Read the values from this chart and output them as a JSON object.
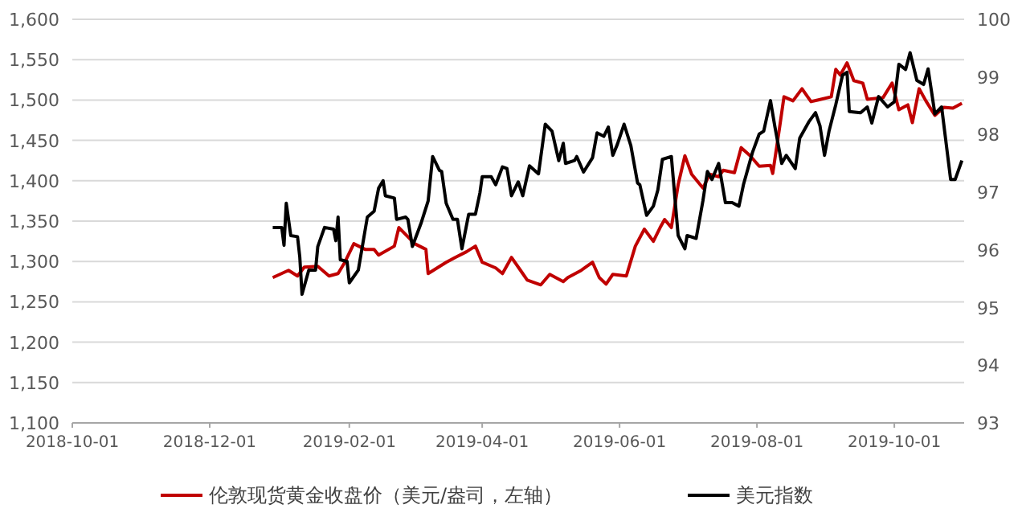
{
  "chart_data": {
    "type": "line",
    "xlim": [
      "2018-10-01",
      "2019-11-01"
    ],
    "xticks": [
      "2018-10-01",
      "2018-12-01",
      "2019-02-01",
      "2019-04-01",
      "2019-06-01",
      "2019-08-01",
      "2019-10-01"
    ],
    "ylim": [
      1100,
      1600
    ],
    "yticks": [
      {
        "value": 1100,
        "label": "1,100"
      },
      {
        "value": 1150,
        "label": "1,150"
      },
      {
        "value": 1200,
        "label": "1,200"
      },
      {
        "value": 1250,
        "label": "1,250"
      },
      {
        "value": 1300,
        "label": "1,300"
      },
      {
        "value": 1350,
        "label": "1,350"
      },
      {
        "value": 1400,
        "label": "1,400"
      },
      {
        "value": 1450,
        "label": "1,450"
      },
      {
        "value": 1500,
        "label": "1,500"
      },
      {
        "value": 1550,
        "label": "1,550"
      },
      {
        "value": 1600,
        "label": "1,600"
      }
    ],
    "y2lim": [
      93,
      100
    ],
    "y2ticks": [
      93,
      94,
      95,
      96,
      97,
      98,
      99,
      100
    ],
    "grid": "y",
    "legend": "bottom",
    "series": [
      {
        "name": "伦敦现货黄金收盘价（美元/盎司，左轴）",
        "color": "#c00000",
        "x": [
          "2018-12-29",
          "2019-01-05",
          "2019-01-09",
          "2019-01-12",
          "2019-01-18",
          "2019-01-23",
          "2019-01-27",
          "2019-01-30",
          "2019-02-03",
          "2019-02-08",
          "2019-02-12",
          "2019-02-14",
          "2019-02-21",
          "2019-02-23",
          "2019-03-02",
          "2019-03-07",
          "2019-03-08",
          "2019-03-16",
          "2019-03-20",
          "2019-03-25",
          "2019-03-29",
          "2019-04-01",
          "2019-04-07",
          "2019-04-10",
          "2019-04-14",
          "2019-04-19",
          "2019-04-21",
          "2019-04-27",
          "2019-05-01",
          "2019-05-07",
          "2019-05-09",
          "2019-05-15",
          "2019-05-20",
          "2019-05-23",
          "2019-05-26",
          "2019-05-29",
          "2019-06-04",
          "2019-06-08",
          "2019-06-12",
          "2019-06-16",
          "2019-06-19",
          "2019-06-21",
          "2019-06-24",
          "2019-06-27",
          "2019-06-30",
          "2019-07-03",
          "2019-07-08",
          "2019-07-11",
          "2019-07-15",
          "2019-07-17",
          "2019-07-22",
          "2019-07-25",
          "2019-07-29",
          "2019-08-02",
          "2019-08-07",
          "2019-08-08",
          "2019-08-11",
          "2019-08-13",
          "2019-08-17",
          "2019-08-21",
          "2019-08-25",
          "2019-09-03",
          "2019-09-05",
          "2019-09-07",
          "2019-09-10",
          "2019-09-13",
          "2019-09-17",
          "2019-09-19",
          "2019-09-26",
          "2019-09-30",
          "2019-10-03",
          "2019-10-07",
          "2019-10-09",
          "2019-10-12",
          "2019-10-15",
          "2019-10-19",
          "2019-10-23",
          "2019-10-27",
          "2019-10-31"
        ],
        "values": [
          1280,
          1289,
          1282,
          1293,
          1294,
          1282,
          1285,
          1299,
          1322,
          1315,
          1315,
          1308,
          1319,
          1342,
          1322,
          1315,
          1285,
          1299,
          1305,
          1312,
          1319,
          1299,
          1292,
          1285,
          1305,
          1285,
          1277,
          1271,
          1284,
          1275,
          1280,
          1289,
          1299,
          1280,
          1272,
          1284,
          1282,
          1319,
          1340,
          1325,
          1342,
          1352,
          1342,
          1395,
          1431,
          1408,
          1391,
          1408,
          1405,
          1413,
          1410,
          1441,
          1431,
          1418,
          1419,
          1409,
          1465,
          1504,
          1499,
          1514,
          1498,
          1504,
          1538,
          1531,
          1546,
          1524,
          1521,
          1501,
          1503,
          1521,
          1488,
          1494,
          1472,
          1514,
          1499,
          1481,
          1491,
          1490,
          1496
        ]
      },
      {
        "name": "美元指数",
        "color": "#000000",
        "axis": "y2",
        "x": [
          "2018-12-29",
          "2019-01-02",
          "2019-01-03",
          "2019-01-04",
          "2019-01-06",
          "2019-01-09",
          "2019-01-10",
          "2019-01-11",
          "2019-01-14",
          "2019-01-17",
          "2019-01-18",
          "2019-01-21",
          "2019-01-25",
          "2019-01-26",
          "2019-01-27",
          "2019-01-28",
          "2019-01-31",
          "2019-02-01",
          "2019-02-05",
          "2019-02-09",
          "2019-02-12",
          "2019-02-14",
          "2019-02-16",
          "2019-02-17",
          "2019-02-21",
          "2019-02-22",
          "2019-02-26",
          "2019-02-27",
          "2019-03-01",
          "2019-03-05",
          "2019-03-08",
          "2019-03-10",
          "2019-03-13",
          "2019-03-14",
          "2019-03-16",
          "2019-03-19",
          "2019-03-21",
          "2019-03-23",
          "2019-03-26",
          "2019-03-29",
          "2019-03-31",
          "2019-04-01",
          "2019-04-05",
          "2019-04-07",
          "2019-04-10",
          "2019-04-12",
          "2019-04-14",
          "2019-04-17",
          "2019-04-19",
          "2019-04-22",
          "2019-04-26",
          "2019-04-29",
          "2019-05-02",
          "2019-05-05",
          "2019-05-07",
          "2019-05-08",
          "2019-05-12",
          "2019-05-13",
          "2019-05-16",
          "2019-05-20",
          "2019-05-22",
          "2019-05-25",
          "2019-05-27",
          "2019-05-29",
          "2019-05-31",
          "2019-06-03",
          "2019-06-06",
          "2019-06-09",
          "2019-06-10",
          "2019-06-13",
          "2019-06-16",
          "2019-06-18",
          "2019-06-20",
          "2019-06-24",
          "2019-06-27",
          "2019-06-30",
          "2019-07-01",
          "2019-07-05",
          "2019-07-08",
          "2019-07-10",
          "2019-07-12",
          "2019-07-15",
          "2019-07-18",
          "2019-07-21",
          "2019-07-24",
          "2019-07-26",
          "2019-07-30",
          "2019-08-02",
          "2019-08-04",
          "2019-08-07",
          "2019-08-09",
          "2019-08-12",
          "2019-08-14",
          "2019-08-18",
          "2019-08-20",
          "2019-08-24",
          "2019-08-27",
          "2019-08-29",
          "2019-08-31",
          "2019-09-02",
          "2019-09-05",
          "2019-09-08",
          "2019-09-10",
          "2019-09-11",
          "2019-09-16",
          "2019-09-19",
          "2019-09-21",
          "2019-09-24",
          "2019-09-28",
          "2019-10-01",
          "2019-10-03",
          "2019-10-06",
          "2019-10-08",
          "2019-10-11",
          "2019-10-14",
          "2019-10-16",
          "2019-10-19",
          "2019-10-22",
          "2019-10-26",
          "2019-10-28",
          "2019-10-31"
        ],
        "values": [
          96.39,
          96.39,
          96.08,
          96.81,
          96.25,
          96.23,
          95.88,
          95.23,
          95.65,
          95.65,
          96.06,
          96.39,
          96.36,
          96.16,
          96.57,
          95.83,
          95.8,
          95.43,
          95.65,
          96.57,
          96.67,
          97.07,
          97.2,
          96.94,
          96.9,
          96.53,
          96.57,
          96.53,
          96.06,
          96.48,
          96.85,
          97.62,
          97.38,
          97.36,
          96.81,
          96.53,
          96.53,
          96.02,
          96.62,
          96.62,
          96.99,
          97.27,
          97.27,
          97.13,
          97.44,
          97.41,
          96.94,
          97.18,
          96.94,
          97.46,
          97.32,
          98.18,
          98.06,
          97.55,
          97.85,
          97.5,
          97.55,
          97.62,
          97.35,
          97.6,
          98.03,
          97.97,
          98.13,
          97.64,
          97.83,
          98.18,
          97.81,
          97.16,
          97.13,
          96.6,
          96.76,
          97.04,
          97.57,
          97.62,
          96.25,
          96.02,
          96.25,
          96.2,
          96.85,
          97.36,
          97.22,
          97.5,
          96.82,
          96.82,
          96.76,
          97.13,
          97.69,
          98.01,
          98.06,
          98.59,
          98.13,
          97.5,
          97.64,
          97.41,
          97.94,
          98.22,
          98.38,
          98.15,
          97.64,
          98.06,
          98.52,
          99.03,
          99.08,
          98.4,
          98.38,
          98.48,
          98.2,
          98.66,
          98.48,
          98.57,
          99.22,
          99.13,
          99.42,
          98.94,
          98.87,
          99.14,
          98.36,
          98.48,
          97.22,
          97.22,
          97.55
        ]
      }
    ]
  }
}
